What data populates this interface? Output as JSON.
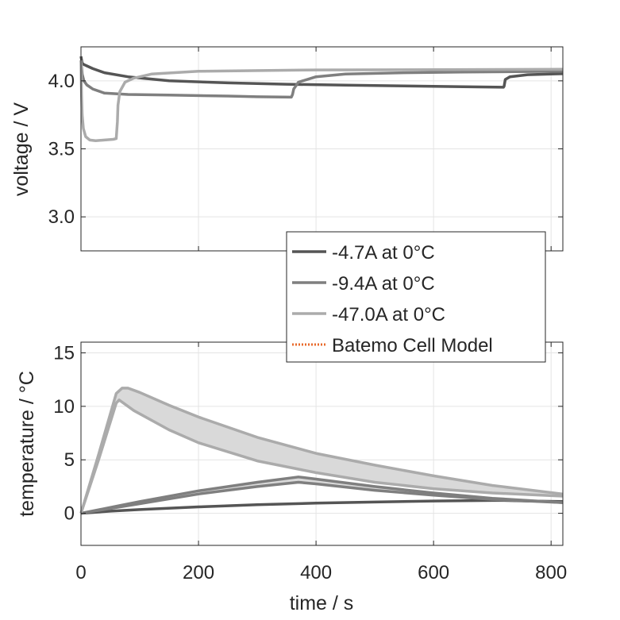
{
  "chart_data": [
    {
      "type": "line",
      "ylabel": "voltage / V",
      "xlim": [
        0,
        820
      ],
      "ylim": [
        2.75,
        4.25
      ],
      "yticks": [
        3.0,
        3.5,
        4.0
      ],
      "ytick_labels": [
        "3.0",
        "3.5",
        "4.0"
      ],
      "xticks": [
        0,
        200,
        400,
        600,
        800
      ],
      "grid": true,
      "series": [
        {
          "name": "-4.7A at 0°C",
          "color": "#555555",
          "x": [
            0,
            2,
            5,
            10,
            20,
            40,
            80,
            150,
            250,
            350,
            450,
            550,
            650,
            719,
            720,
            722,
            730,
            760,
            800,
            820
          ],
          "y": [
            4.18,
            4.13,
            4.12,
            4.11,
            4.09,
            4.06,
            4.03,
            4.0,
            3.985,
            3.975,
            3.968,
            3.962,
            3.957,
            3.953,
            3.96,
            4.01,
            4.03,
            4.045,
            4.05,
            4.052
          ]
        },
        {
          "name": "-9.4A at 0°C",
          "color": "#7f7f7f",
          "x": [
            0,
            2,
            5,
            10,
            20,
            40,
            80,
            150,
            250,
            300,
            358,
            360,
            362,
            370,
            400,
            450,
            550,
            650,
            820
          ],
          "y": [
            4.15,
            4.05,
            4.0,
            3.97,
            3.94,
            3.91,
            3.9,
            3.895,
            3.888,
            3.883,
            3.88,
            3.9,
            3.94,
            3.99,
            4.03,
            4.05,
            4.06,
            4.065,
            4.07
          ]
        },
        {
          "name": "-47.0A at 0°C",
          "color": "#ababab",
          "x": [
            0,
            1,
            2,
            4,
            8,
            15,
            25,
            40,
            55,
            60,
            62,
            63,
            66,
            75,
            90,
            120,
            200,
            400,
            820
          ],
          "y": [
            4.15,
            3.9,
            3.75,
            3.65,
            3.59,
            3.565,
            3.56,
            3.565,
            3.57,
            3.575,
            3.7,
            3.82,
            3.92,
            3.99,
            4.02,
            4.05,
            4.07,
            4.08,
            4.085
          ]
        }
      ]
    },
    {
      "type": "line",
      "xlabel": "time / s",
      "ylabel": "temperature / °C",
      "xlim": [
        0,
        820
      ],
      "ylim": [
        -3,
        16
      ],
      "yticks": [
        0,
        5,
        10,
        15
      ],
      "xticks": [
        0,
        200,
        400,
        600,
        800
      ],
      "xtick_labels": [
        "0",
        "200",
        "400",
        "600",
        "800"
      ],
      "grid": true,
      "series": [
        {
          "name": "-4.7A at 0°C",
          "color": "#555555",
          "x": [
            0,
            50,
            100,
            200,
            300,
            400,
            500,
            600,
            700,
            720,
            760,
            820
          ],
          "y": [
            0,
            0.2,
            0.35,
            0.6,
            0.8,
            0.95,
            1.05,
            1.15,
            1.2,
            1.2,
            1.15,
            1.1
          ]
        },
        {
          "name": "-9.4A at 0°C (upper)",
          "color": "#7f7f7f",
          "x": [
            0,
            100,
            200,
            300,
            370,
            400,
            500,
            600,
            700,
            820
          ],
          "y": [
            0,
            1.1,
            2.1,
            2.9,
            3.4,
            3.2,
            2.5,
            1.9,
            1.4,
            1.0
          ]
        },
        {
          "name": "-9.4A at 0°C (lower)",
          "color": "#7f7f7f",
          "x": [
            0,
            100,
            200,
            300,
            370,
            400,
            500,
            600,
            700,
            820
          ],
          "y": [
            0,
            0.9,
            1.8,
            2.5,
            2.9,
            2.75,
            2.15,
            1.7,
            1.3,
            1.0
          ]
        },
        {
          "name": "-47.0A at 0°C (upper)",
          "color": "#ababab",
          "x": [
            0,
            30,
            60,
            70,
            80,
            100,
            150,
            200,
            300,
            400,
            500,
            600,
            700,
            820
          ],
          "y": [
            0,
            5.5,
            11.2,
            11.7,
            11.7,
            11.3,
            10.1,
            9.0,
            7.1,
            5.6,
            4.5,
            3.5,
            2.6,
            1.8
          ]
        },
        {
          "name": "-47.0A at 0°C (lower)",
          "color": "#ababab",
          "x": [
            0,
            30,
            60,
            65,
            70,
            90,
            150,
            200,
            300,
            400,
            500,
            600,
            700,
            820
          ],
          "y": [
            0,
            5.0,
            10.3,
            10.6,
            10.4,
            9.6,
            7.8,
            6.6,
            4.9,
            3.8,
            2.9,
            2.3,
            1.9,
            1.6
          ]
        }
      ]
    }
  ],
  "legend": {
    "placement": "center-right",
    "entries": [
      {
        "label": "-4.7A at 0°C",
        "color": "#555555",
        "style": "solid"
      },
      {
        "label": "-9.4A at 0°C",
        "color": "#7f7f7f",
        "style": "solid"
      },
      {
        "label": "-47.0A at 0°C",
        "color": "#ababab",
        "style": "solid"
      },
      {
        "label": "Batemo Cell Model",
        "color": "#e8692a",
        "style": "dotted"
      }
    ]
  },
  "colors": {
    "band_fill": "#d9d9d9",
    "grid": "#e4e4e4",
    "axis": "#262626"
  }
}
